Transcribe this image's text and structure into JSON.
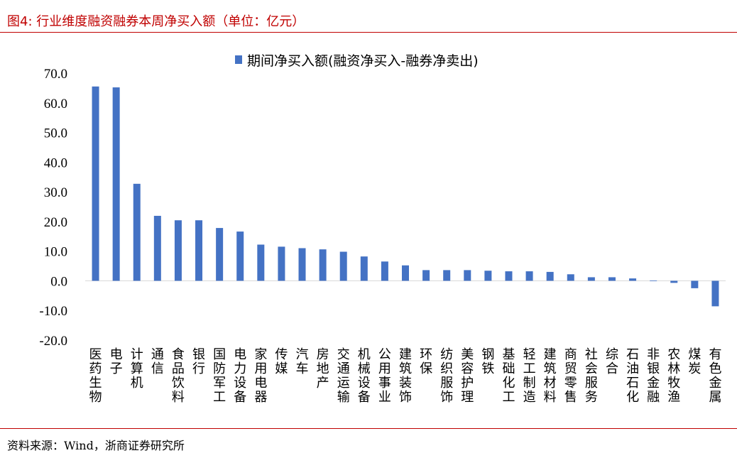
{
  "figure": {
    "title": "图4:  行业维度融资融券本周净买入额（单位：亿元）",
    "source": "资料来源：Wind，浙商证券研究所"
  },
  "colors": {
    "accent": "#c00000",
    "bar": "#4472c4"
  },
  "chart_data": {
    "type": "bar",
    "title": "",
    "xlabel": "",
    "ylabel": "",
    "legend": {
      "label": "期间净买入额(融资净买入-融券净卖出)",
      "position": "top-center"
    },
    "ylim": [
      -20,
      70
    ],
    "yticks": [
      70,
      60,
      50,
      40,
      30,
      20,
      10,
      0,
      -10,
      -20
    ],
    "ytick_labels": [
      "70.0",
      "60.0",
      "50.0",
      "40.0",
      "30.0",
      "20.0",
      "10.0",
      "0.0",
      "-10.0",
      "-20.0"
    ],
    "grid": false,
    "categories": [
      "医药生物",
      "电子",
      "计算机",
      "通信",
      "食品饮料",
      "银行",
      "国防军工",
      "电力设备",
      "家用电器",
      "传媒",
      "汽车",
      "房地产",
      "交通运输",
      "机械设备",
      "公用事业",
      "建筑装饰",
      "环保",
      "纺织服饰",
      "美容护理",
      "钢铁",
      "基础化工",
      "轻工制造",
      "建筑材料",
      "商贸零售",
      "社会服务",
      "综合",
      "石油石化",
      "非银金融",
      "农林牧渔",
      "煤炭",
      "有色金属"
    ],
    "series": [
      {
        "name": "期间净买入额(融资净买入-融券净卖出)",
        "values": [
          65.5,
          65.2,
          32.7,
          21.9,
          20.4,
          20.4,
          17.8,
          16.6,
          12.2,
          11.5,
          11.0,
          10.6,
          9.8,
          8.2,
          6.5,
          5.2,
          3.6,
          3.6,
          3.6,
          3.4,
          3.2,
          3.2,
          3.0,
          2.2,
          1.2,
          1.2,
          0.8,
          0.1,
          -0.7,
          -2.5,
          -8.6
        ]
      }
    ]
  }
}
